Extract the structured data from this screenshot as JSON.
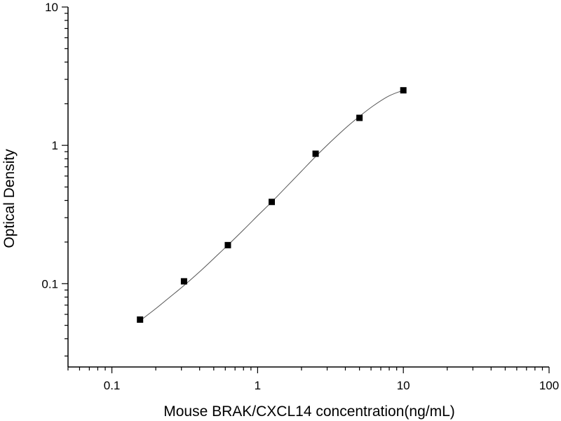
{
  "chart_data": {
    "type": "scatter",
    "xlabel": "Mouse BRAK/CXCL14 concentration(ng/mL)",
    "ylabel": "Optical Density",
    "x_scale": "log",
    "y_scale": "log",
    "xlim": [
      0.05,
      100
    ],
    "ylim": [
      0.025,
      10
    ],
    "x_ticks": [
      {
        "value": 0.1,
        "label": "0.1"
      },
      {
        "value": 1,
        "label": "1"
      },
      {
        "value": 10,
        "label": "10"
      },
      {
        "value": 100,
        "label": "100"
      }
    ],
    "y_ticks": [
      {
        "value": 0.1,
        "label": "0.1"
      },
      {
        "value": 1,
        "label": "1"
      },
      {
        "value": 10,
        "label": "10"
      }
    ],
    "grid": false,
    "series": [
      {
        "marker": "square",
        "color": "#000000",
        "x": [
          0.156,
          0.3125,
          0.625,
          1.25,
          2.5,
          5,
          10
        ],
        "y": [
          0.055,
          0.104,
          0.19,
          0.39,
          0.87,
          1.58,
          2.5
        ]
      }
    ],
    "fit_curve": {
      "color": "#555555",
      "x": [
        0.156,
        0.2,
        0.25,
        0.3125,
        0.4,
        0.5,
        0.625,
        0.8,
        1.0,
        1.25,
        1.6,
        2.0,
        2.5,
        3.2,
        4.0,
        5.0,
        6.3,
        8.0,
        10.0
      ],
      "y": [
        0.054,
        0.066,
        0.08,
        0.097,
        0.122,
        0.152,
        0.19,
        0.245,
        0.31,
        0.39,
        0.51,
        0.65,
        0.83,
        1.07,
        1.33,
        1.62,
        1.95,
        2.28,
        2.5
      ]
    }
  }
}
